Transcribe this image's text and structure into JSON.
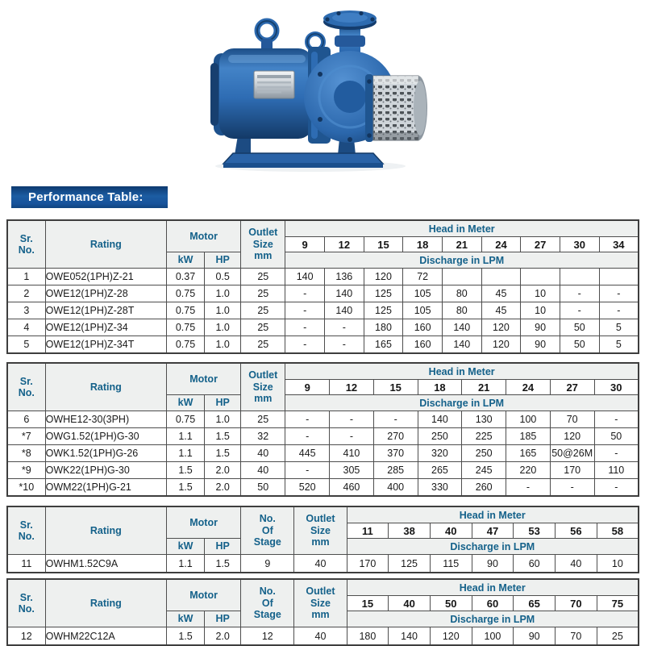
{
  "page": {
    "title_bar": "Performance Table:"
  },
  "pump_image": {
    "name": "openwell-submersible-pump-photo",
    "body_color": "#2b6ab1",
    "shadow_color": "#153e6e",
    "steel_color": "#c6cdd3"
  },
  "labels": {
    "sr_no": "Sr.\nNo.",
    "rating": "Rating",
    "motor": "Motor",
    "kw": "kW",
    "hp": "HP",
    "outlet": "Outlet\nSize\nmm",
    "stage": "No.\nOf\nStage",
    "head": "Head in Meter",
    "discharge": "Discharge in LPM"
  },
  "tables": [
    {
      "has_stage": false,
      "heads": [
        "9",
        "12",
        "15",
        "18",
        "21",
        "24",
        "27",
        "30",
        "34"
      ],
      "rows": [
        {
          "sr": "1",
          "rating": "OWE052(1PH)Z-21",
          "kw": "0.37",
          "hp": "0.5",
          "outlet": "25",
          "discharge": [
            "140",
            "136",
            "120",
            "72",
            "",
            "",
            "",
            "",
            ""
          ]
        },
        {
          "sr": "2",
          "rating": "OWE12(1PH)Z-28",
          "kw": "0.75",
          "hp": "1.0",
          "outlet": "25",
          "discharge": [
            "-",
            "140",
            "125",
            "105",
            "80",
            "45",
            "10",
            "-",
            "-"
          ]
        },
        {
          "sr": "3",
          "rating": "OWE12(1PH)Z-28T",
          "kw": "0.75",
          "hp": "1.0",
          "outlet": "25",
          "discharge": [
            "-",
            "140",
            "125",
            "105",
            "80",
            "45",
            "10",
            "-",
            "-"
          ]
        },
        {
          "sr": "4",
          "rating": "OWE12(1PH)Z-34",
          "kw": "0.75",
          "hp": "1.0",
          "outlet": "25",
          "discharge": [
            "-",
            "-",
            "180",
            "160",
            "140",
            "120",
            "90",
            "50",
            "5"
          ]
        },
        {
          "sr": "5",
          "rating": "OWE12(1PH)Z-34T",
          "kw": "0.75",
          "hp": "1.0",
          "outlet": "25",
          "discharge": [
            "-",
            "-",
            "165",
            "160",
            "140",
            "120",
            "90",
            "50",
            "5"
          ]
        }
      ]
    },
    {
      "has_stage": false,
      "heads": [
        "9",
        "12",
        "15",
        "18",
        "21",
        "24",
        "27",
        "30"
      ],
      "rows": [
        {
          "sr": "6",
          "rating": "OWHE12-30(3PH)",
          "kw": "0.75",
          "hp": "1.0",
          "outlet": "25",
          "discharge": [
            "-",
            "-",
            "-",
            "140",
            "130",
            "100",
            "70",
            "-"
          ]
        },
        {
          "sr": "*7",
          "rating": "OWG1.52(1PH)G-30",
          "kw": "1.1",
          "hp": "1.5",
          "outlet": "32",
          "discharge": [
            "-",
            "-",
            "270",
            "250",
            "225",
            "185",
            "120",
            "50"
          ]
        },
        {
          "sr": "*8",
          "rating": "OWK1.52(1PH)G-26",
          "kw": "1.1",
          "hp": "1.5",
          "outlet": "40",
          "discharge": [
            "445",
            "410",
            "370",
            "320",
            "250",
            "165",
            "50@26M",
            "-"
          ]
        },
        {
          "sr": "*9",
          "rating": "OWK22(1PH)G-30",
          "kw": "1.5",
          "hp": "2.0",
          "outlet": "40",
          "discharge": [
            "-",
            "305",
            "285",
            "265",
            "245",
            "220",
            "170",
            "110"
          ]
        },
        {
          "sr": "*10",
          "rating": "OWM22(1PH)G-21",
          "kw": "1.5",
          "hp": "2.0",
          "outlet": "50",
          "discharge": [
            "520",
            "460",
            "400",
            "330",
            "260",
            "-",
            "-",
            "-"
          ]
        }
      ]
    },
    {
      "has_stage": true,
      "heads": [
        "11",
        "38",
        "40",
        "47",
        "53",
        "56",
        "58"
      ],
      "rows": [
        {
          "sr": "11",
          "rating": "OWHM1.52C9A",
          "kw": "1.1",
          "hp": "1.5",
          "stage": "9",
          "outlet": "40",
          "discharge": [
            "170",
            "125",
            "115",
            "90",
            "60",
            "40",
            "10"
          ]
        }
      ]
    },
    {
      "has_stage": true,
      "heads": [
        "15",
        "40",
        "50",
        "60",
        "65",
        "70",
        "75"
      ],
      "rows": [
        {
          "sr": "12",
          "rating": "OWHM22C12A",
          "kw": "1.5",
          "hp": "2.0",
          "stage": "12",
          "outlet": "40",
          "discharge": [
            "180",
            "140",
            "120",
            "100",
            "90",
            "70",
            "25"
          ]
        }
      ]
    }
  ]
}
